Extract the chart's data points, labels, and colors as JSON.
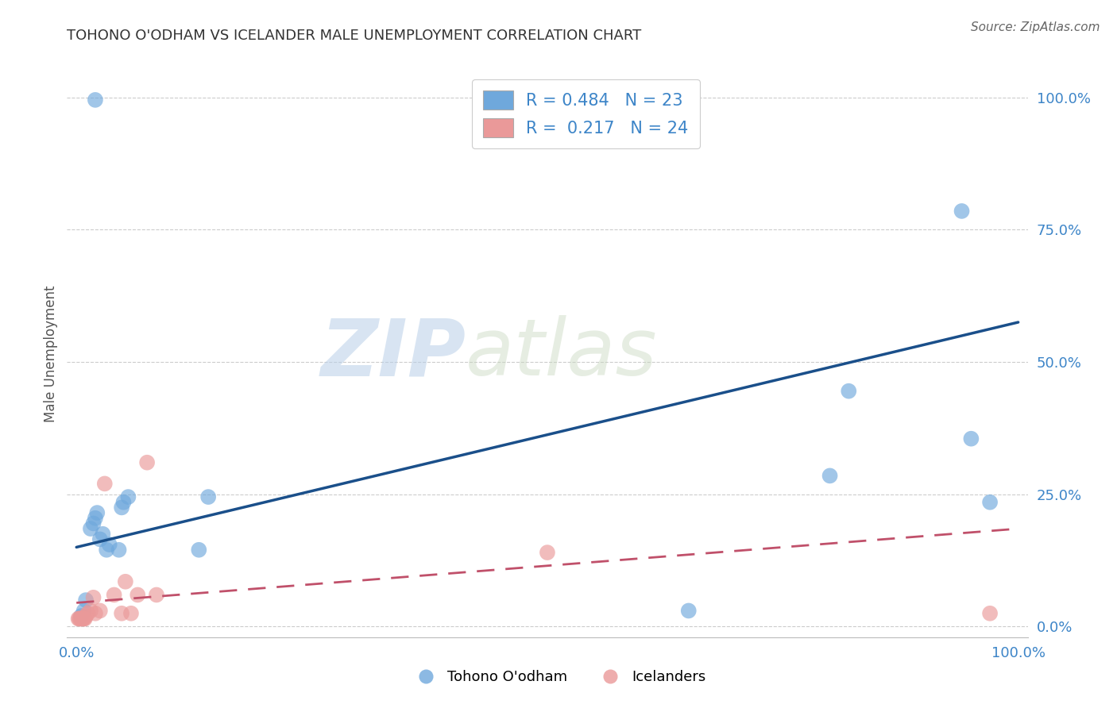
{
  "title": "TOHONO O'ODHAM VS ICELANDER MALE UNEMPLOYMENT CORRELATION CHART",
  "source": "Source: ZipAtlas.com",
  "ylabel": "Male Unemployment",
  "ytick_labels": [
    "0.0%",
    "25.0%",
    "50.0%",
    "75.0%",
    "100.0%"
  ],
  "ytick_values": [
    0.0,
    0.25,
    0.5,
    0.75,
    1.0
  ],
  "xlim": [
    -0.01,
    1.01
  ],
  "ylim": [
    -0.02,
    1.05
  ],
  "blue_color": "#6fa8dc",
  "pink_color": "#ea9999",
  "blue_line_color": "#1a4f8a",
  "pink_line_color": "#c0506a",
  "legend_blue_label": "R = 0.484   N = 23",
  "legend_pink_label": "R =  0.217   N = 24",
  "bottom_legend_blue": "Tohono O'odham",
  "bottom_legend_pink": "Icelanders",
  "watermark_zip": "ZIP",
  "watermark_atlas": "atlas",
  "blue_scatter_x": [
    0.005,
    0.008,
    0.01,
    0.015,
    0.018,
    0.02,
    0.022,
    0.025,
    0.028,
    0.032,
    0.035,
    0.045,
    0.048,
    0.05,
    0.055,
    0.13,
    0.14,
    0.65,
    0.8,
    0.82,
    0.94,
    0.95,
    0.97
  ],
  "blue_scatter_y": [
    0.02,
    0.03,
    0.05,
    0.185,
    0.195,
    0.205,
    0.215,
    0.165,
    0.175,
    0.145,
    0.155,
    0.145,
    0.225,
    0.235,
    0.245,
    0.145,
    0.245,
    0.03,
    0.285,
    0.445,
    0.785,
    0.355,
    0.235
  ],
  "blue_outlier_x": [
    0.02
  ],
  "blue_outlier_y": [
    0.995
  ],
  "pink_scatter_x": [
    0.002,
    0.003,
    0.004,
    0.005,
    0.006,
    0.007,
    0.008,
    0.009,
    0.01,
    0.012,
    0.015,
    0.018,
    0.02,
    0.025,
    0.03,
    0.04,
    0.048,
    0.052,
    0.058,
    0.065,
    0.075,
    0.085,
    0.5,
    0.97
  ],
  "pink_scatter_y": [
    0.015,
    0.015,
    0.015,
    0.015,
    0.015,
    0.015,
    0.015,
    0.015,
    0.02,
    0.025,
    0.03,
    0.055,
    0.025,
    0.03,
    0.27,
    0.06,
    0.025,
    0.085,
    0.025,
    0.06,
    0.31,
    0.06,
    0.14,
    0.025
  ],
  "blue_trend_x": [
    0.0,
    1.0
  ],
  "blue_trend_y": [
    0.15,
    0.575
  ],
  "pink_trend_x": [
    0.0,
    1.0
  ],
  "pink_trend_y": [
    0.045,
    0.185
  ],
  "grid_color": "#cccccc",
  "background_color": "#ffffff",
  "title_color": "#333333",
  "axis_label_color": "#555555",
  "tick_color": "#3d85c8",
  "source_color": "#666666"
}
